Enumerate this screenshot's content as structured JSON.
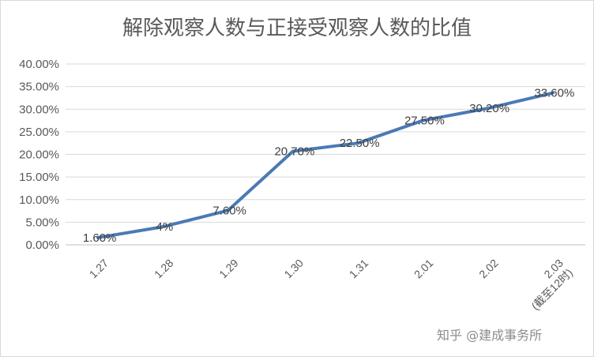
{
  "chart_data": {
    "type": "line",
    "title": "解除观察人数与正接受观察人数的比值",
    "categories": [
      "1.27",
      "1.28",
      "1.29",
      "1.30",
      "1.31",
      "2.01",
      "2.02",
      "2.03\n(截至12时)"
    ],
    "series": [
      {
        "values": [
          1.6,
          4,
          7.6,
          20.7,
          22.5,
          27.5,
          30.2,
          33.6
        ],
        "data_labels": [
          "1.60%",
          "4%",
          "7.60%",
          "20.70%",
          "22.50%",
          "27.50%",
          "30.20%",
          "33.60%"
        ],
        "color": "#4a7ab5"
      }
    ],
    "ylim": [
      0,
      40
    ],
    "yticks": [
      "0.00%",
      "5.00%",
      "10.00%",
      "15.00%",
      "20.00%",
      "25.00%",
      "30.00%",
      "35.00%",
      "40.00%"
    ],
    "grid": true,
    "xlabel": "",
    "ylabel": ""
  },
  "watermark": "知乎 @建成事务所"
}
